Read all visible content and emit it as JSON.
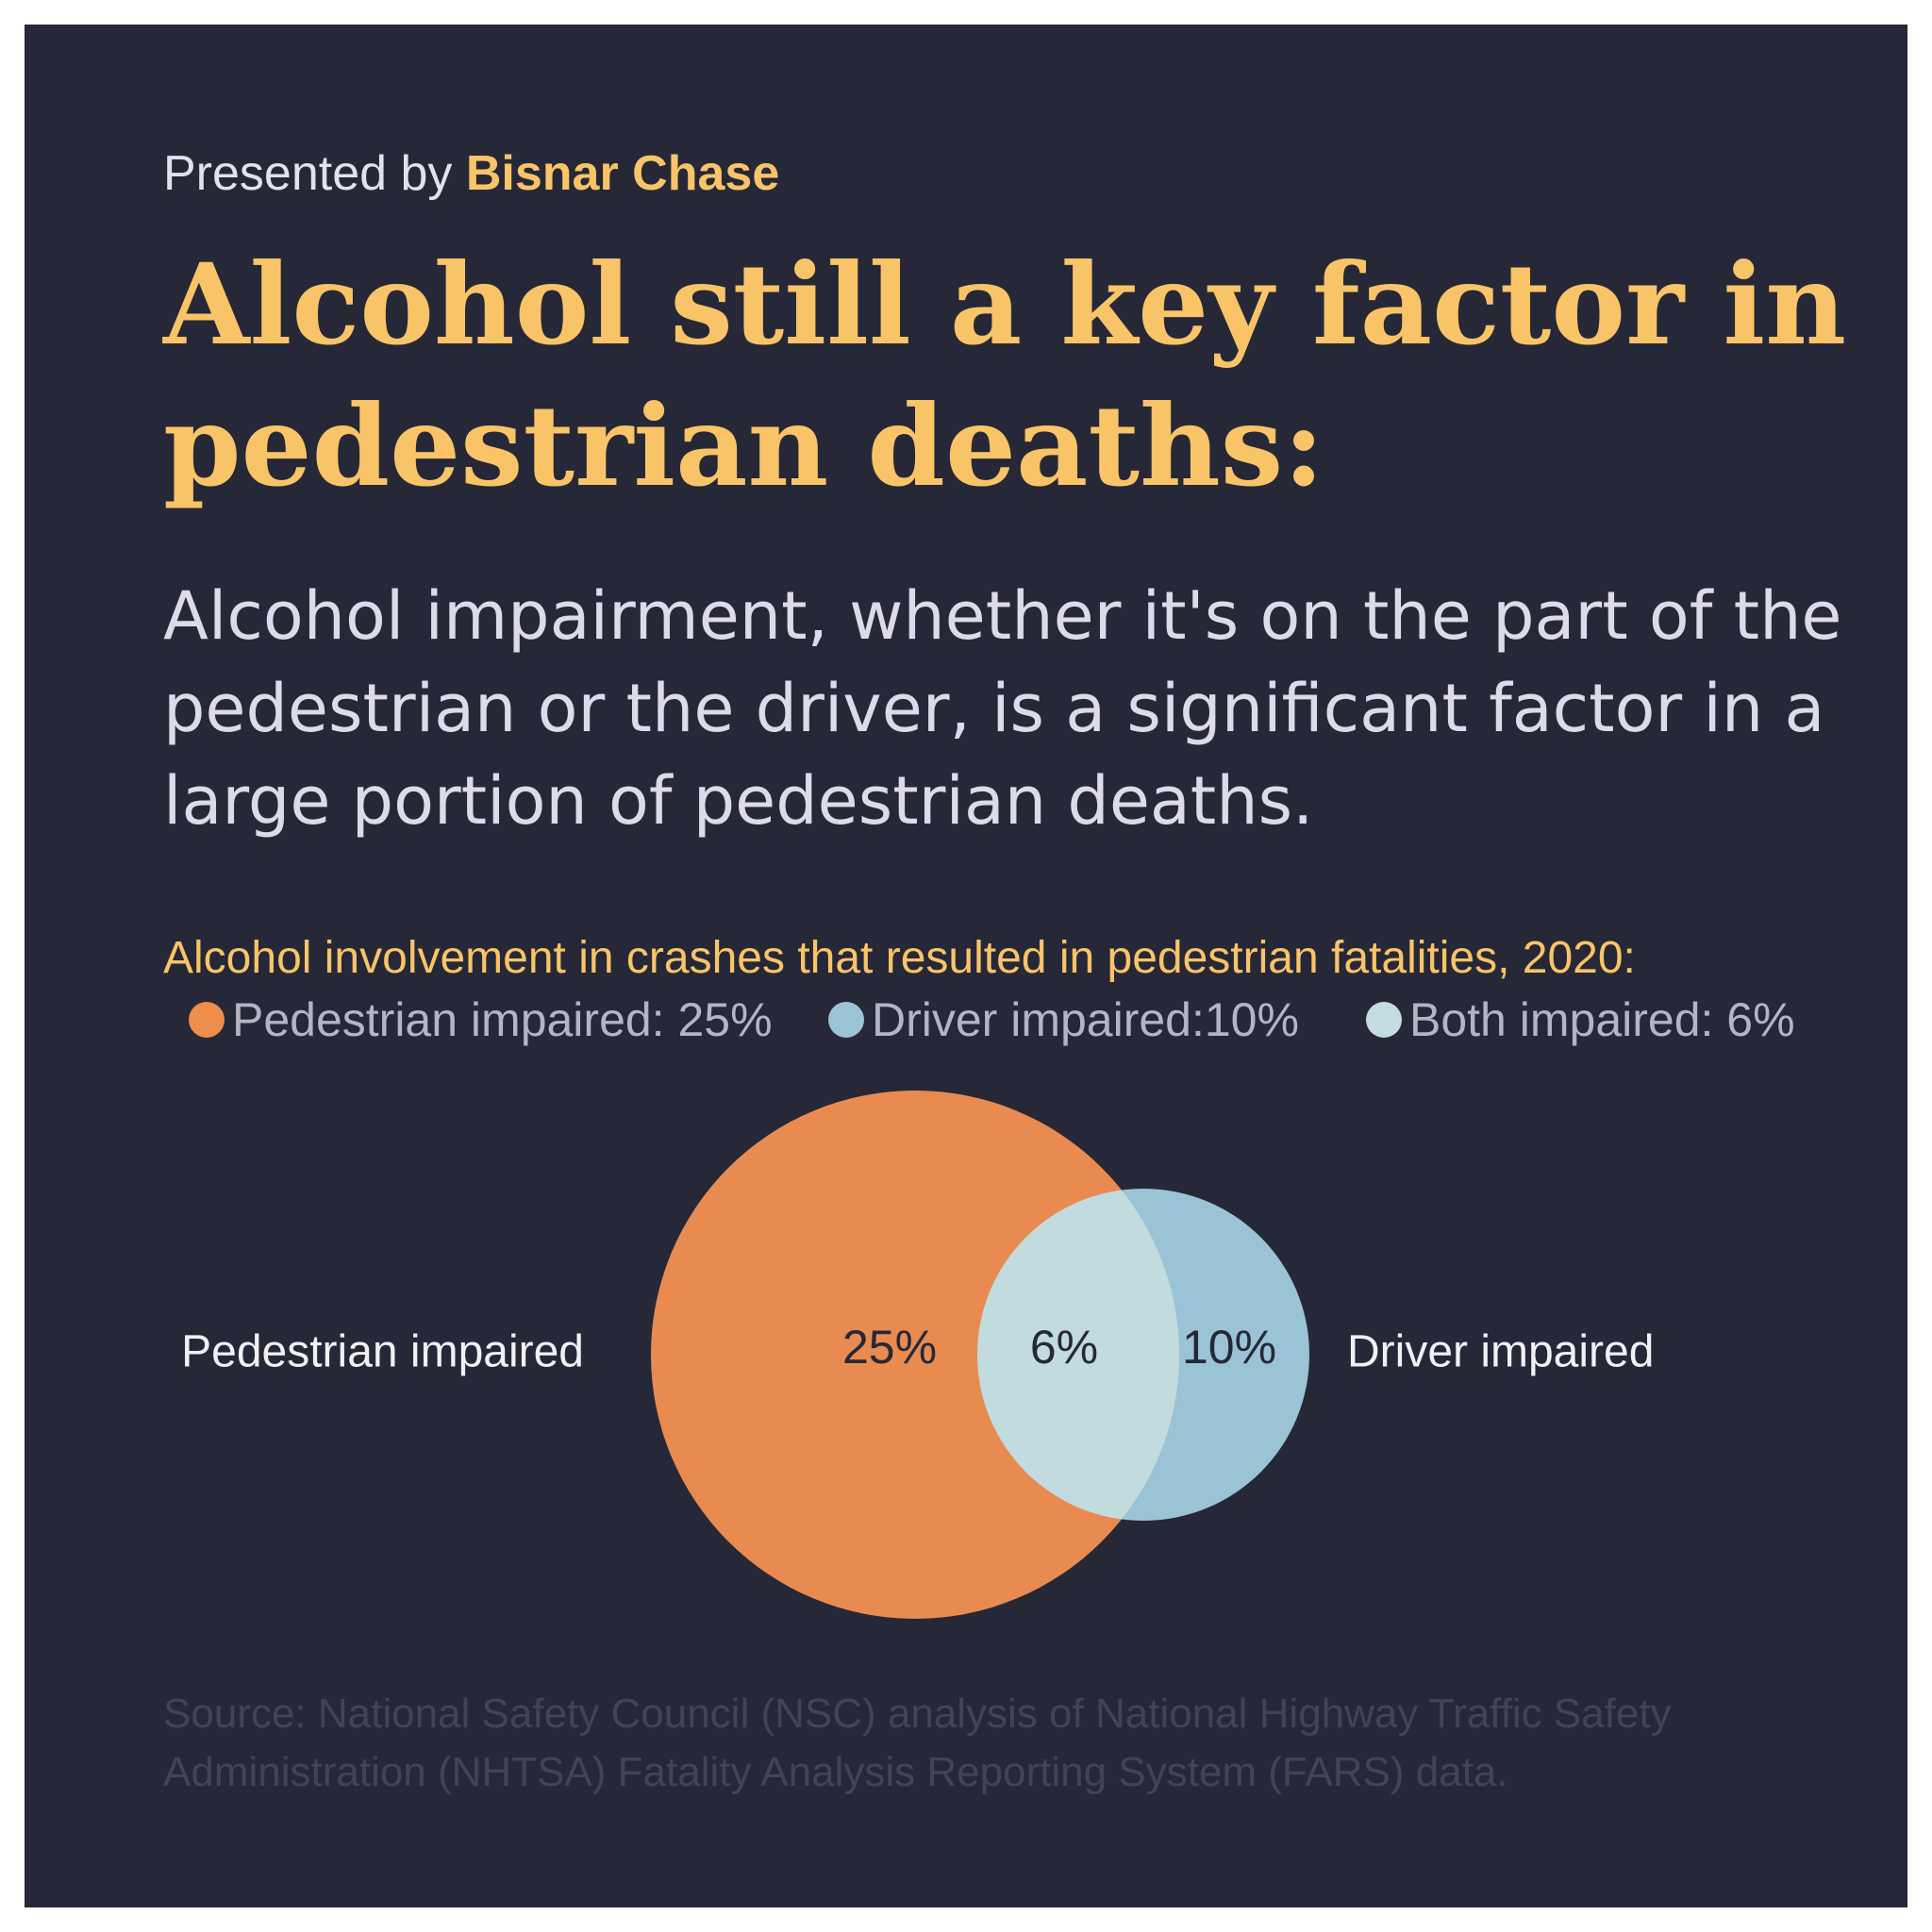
{
  "header": {
    "presented_prefix": "Presented by",
    "brand": "Bisnar Chase"
  },
  "title": "Alcohol still a key factor in pedestrian deaths:",
  "subtitle": "Alcohol impairment, whether it's on the part of the pedestrian or the driver, is a significant factor in a large portion of pedestrian deaths.",
  "legend": [
    {
      "label": "Pedestrian impaired: 25%",
      "color": "#ef8d4c"
    },
    {
      "label": "Driver impaired:10%",
      "color": "#9bc4d7"
    },
    {
      "label": "Both impaired: 6%",
      "color": "#c3dde0"
    }
  ],
  "chart_data": {
    "type": "venn",
    "title": "Alcohol involvement in crashes that resulted in pedestrian fatalities, 2020:",
    "sets": [
      {
        "name": "Pedestrian impaired",
        "value": 25,
        "display": "25%",
        "color": "#e98b51"
      },
      {
        "name": "Driver impaired",
        "value": 10,
        "display": "10%",
        "color": "#9bc3d6"
      }
    ],
    "intersection": {
      "name": "Both impaired",
      "value": 6,
      "display": "6%",
      "color": "#c2dbdf"
    }
  },
  "source": "Source: National Safety Council (NSC) analysis of National Highway Traffic Safety Administration (NHTSA) Fatality Analysis Reporting System (FARS) data.",
  "colors": {
    "background": "#262837",
    "accent": "#f9c468",
    "text": "#dddbe8"
  }
}
